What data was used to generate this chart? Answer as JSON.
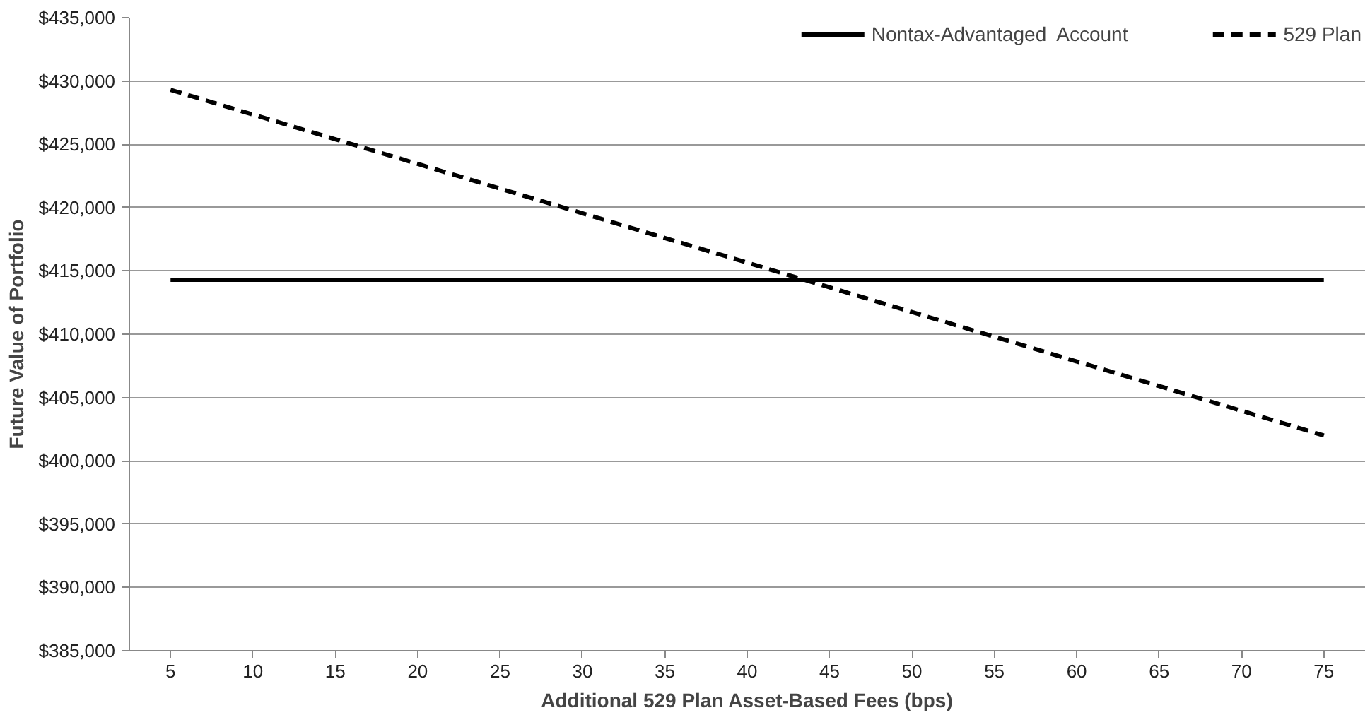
{
  "chart_data": {
    "type": "line",
    "xlabel": "Additional 529 Plan Asset-Based Fees (bps)",
    "ylabel": "Future Value of Portfolio",
    "categories": [
      "5",
      "10",
      "15",
      "20",
      "25",
      "30",
      "35",
      "40",
      "45",
      "50",
      "55",
      "60",
      "65",
      "70",
      "75"
    ],
    "series": [
      {
        "name": "Nontax-Advantaged  Account",
        "color": "#000000",
        "line_style": "solid",
        "values": [
          414300,
          414300,
          414300,
          414300,
          414300,
          414300,
          414300,
          414300,
          414300,
          414300,
          414300,
          414300,
          414300,
          414300,
          414300
        ]
      },
      {
        "name": "529 Plan",
        "color": "#000000",
        "line_style": "dashed",
        "values": [
          429300,
          427350,
          425400,
          423450,
          421500,
          419550,
          417600,
          415650,
          413700,
          411750,
          409800,
          407850,
          405900,
          403950,
          402000
        ]
      }
    ],
    "ylim": [
      385000,
      435000
    ],
    "yticks": [
      {
        "value": 385000,
        "label": "$385,000"
      },
      {
        "value": 390000,
        "label": "$390,000"
      },
      {
        "value": 395000,
        "label": "$395,000"
      },
      {
        "value": 400000,
        "label": "$400,000"
      },
      {
        "value": 405000,
        "label": "$405,000"
      },
      {
        "value": 410000,
        "label": "$410,000"
      },
      {
        "value": 415000,
        "label": "$415,000"
      },
      {
        "value": 420000,
        "label": "$420,000"
      },
      {
        "value": 425000,
        "label": "$425,000"
      },
      {
        "value": 430000,
        "label": "$430,000"
      },
      {
        "value": 435000,
        "label": "$435,000"
      }
    ],
    "grid": "y",
    "legend": "top right",
    "marker": "none"
  }
}
